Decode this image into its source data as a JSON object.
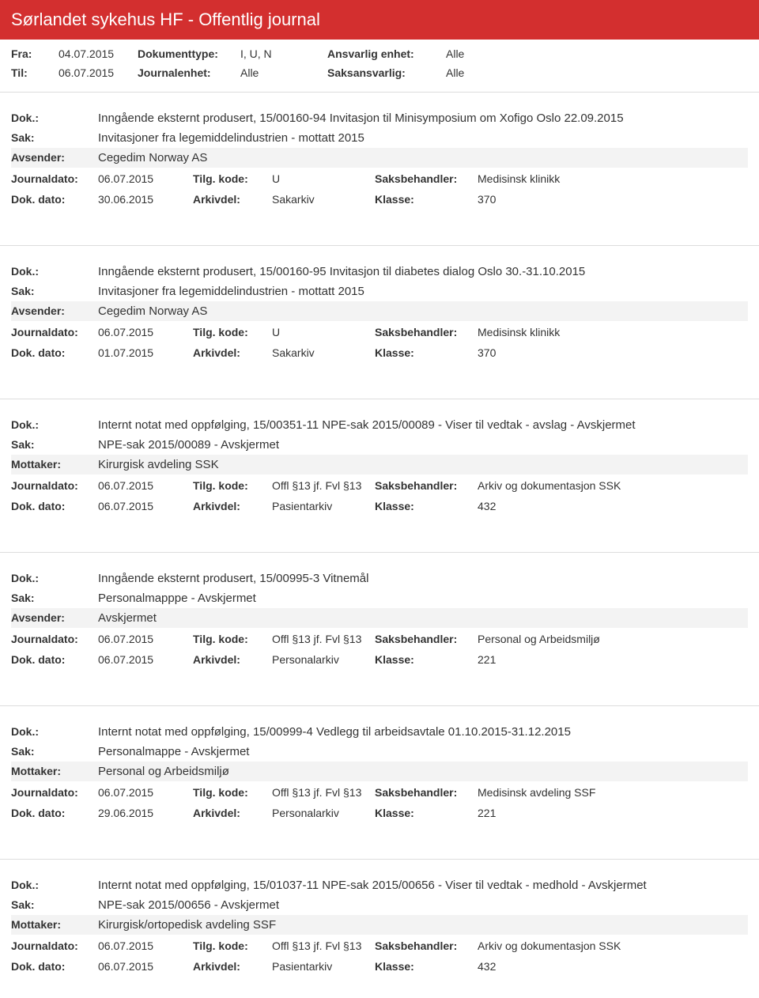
{
  "header": {
    "title": "Sørlandet sykehus HF - Offentlig journal"
  },
  "meta": {
    "fra_lbl": "Fra:",
    "fra_val": "04.07.2015",
    "til_lbl": "Til:",
    "til_val": "06.07.2015",
    "doctype_lbl": "Dokumenttype:",
    "doctype_val": "I, U, N",
    "journalenhet_lbl": "Journalenhet:",
    "journalenhet_val": "Alle",
    "ansvarlig_lbl": "Ansvarlig enhet:",
    "ansvarlig_val": "Alle",
    "saksansvarlig_lbl": "Saksansvarlig:",
    "saksansvarlig_val": "Alle"
  },
  "labels": {
    "dok": "Dok.:",
    "sak": "Sak:",
    "avsender": "Avsender:",
    "mottaker": "Mottaker:",
    "journaldato": "Journaldato:",
    "tilgkode": "Tilg. kode:",
    "saksbehandler": "Saksbehandler:",
    "dokdato": "Dok. dato:",
    "arkivdel": "Arkivdel:",
    "klasse": "Klasse:"
  },
  "records": [
    {
      "dok": "Inngående eksternt produsert, 15/00160-94 Invitasjon til Minisymposium om Xofigo Oslo 22.09.2015",
      "sak": "Invitasjoner fra legemiddelindustrien - mottatt 2015",
      "party_lbl": "Avsender:",
      "party": "Cegedim Norway AS",
      "journaldato": "06.07.2015",
      "tilgkode": "U",
      "saksbehandler": "Medisinsk klinikk",
      "dokdato": "30.06.2015",
      "arkivdel": "Sakarkiv",
      "klasse": "370"
    },
    {
      "dok": "Inngående eksternt produsert, 15/00160-95 Invitasjon til diabetes dialog Oslo 30.-31.10.2015",
      "sak": "Invitasjoner fra legemiddelindustrien - mottatt 2015",
      "party_lbl": "Avsender:",
      "party": "Cegedim Norway AS",
      "journaldato": "06.07.2015",
      "tilgkode": "U",
      "saksbehandler": "Medisinsk klinikk",
      "dokdato": "01.07.2015",
      "arkivdel": "Sakarkiv",
      "klasse": "370"
    },
    {
      "dok": "Internt notat med oppfølging, 15/00351-11 NPE-sak 2015/00089 - Viser til vedtak - avslag - Avskjermet",
      "sak": "NPE-sak 2015/00089 - Avskjermet",
      "party_lbl": "Mottaker:",
      "party": "Kirurgisk avdeling SSK",
      "journaldato": "06.07.2015",
      "tilgkode": "Offl §13 jf. Fvl §13",
      "saksbehandler": "Arkiv og dokumentasjon SSK",
      "dokdato": "06.07.2015",
      "arkivdel": "Pasientarkiv",
      "klasse": "432"
    },
    {
      "dok": "Inngående eksternt produsert, 15/00995-3 Vitnemål",
      "sak": "Personalmapppe - Avskjermet",
      "party_lbl": "Avsender:",
      "party": "Avskjermet",
      "journaldato": "06.07.2015",
      "tilgkode": "Offl §13 jf. Fvl §13",
      "saksbehandler": "Personal og Arbeidsmiljø",
      "dokdato": "06.07.2015",
      "arkivdel": "Personalarkiv",
      "klasse": "221"
    },
    {
      "dok": "Internt notat med oppfølging, 15/00999-4 Vedlegg til arbeidsavtale 01.10.2015-31.12.2015",
      "sak": "Personalmappe - Avskjermet",
      "party_lbl": "Mottaker:",
      "party": "Personal og Arbeidsmiljø",
      "journaldato": "06.07.2015",
      "tilgkode": "Offl §13 jf. Fvl §13",
      "saksbehandler": "Medisinsk avdeling SSF",
      "dokdato": "29.06.2015",
      "arkivdel": "Personalarkiv",
      "klasse": "221"
    },
    {
      "dok": "Internt notat med oppfølging, 15/01037-11 NPE-sak 2015/00656 - Viser til vedtak - medhold - Avskjermet",
      "sak": "NPE-sak 2015/00656 - Avskjermet",
      "party_lbl": "Mottaker:",
      "party": "Kirurgisk/ortopedisk avdeling SSF",
      "journaldato": "06.07.2015",
      "tilgkode": "Offl §13 jf. Fvl §13",
      "saksbehandler": "Arkiv og dokumentasjon SSK",
      "dokdato": "06.07.2015",
      "arkivdel": "Pasientarkiv",
      "klasse": "432"
    }
  ]
}
